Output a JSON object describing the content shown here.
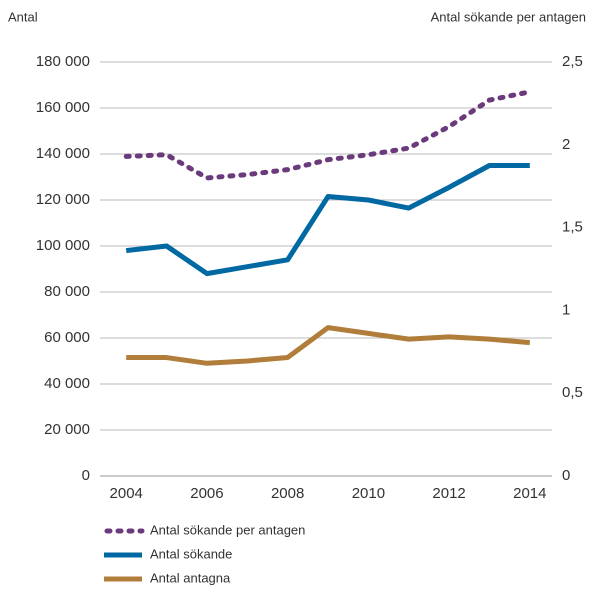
{
  "chart_data": {
    "type": "line",
    "ylabel": "Antal",
    "y2label": "Antal sökande per antagen",
    "x": [
      2004,
      2005,
      2006,
      2007,
      2008,
      2009,
      2010,
      2011,
      2012,
      2013,
      2014
    ],
    "xlim": [
      2003.35,
      2014.55
    ],
    "xticks": [
      2004,
      2006,
      2008,
      2010,
      2012,
      2014
    ],
    "ylim": [
      0,
      180000
    ],
    "yticks": [
      0,
      {
        "value": 20000,
        "label": "20 000"
      },
      {
        "value": 40000,
        "label": "40 000"
      },
      {
        "value": 60000,
        "label": "60 000"
      },
      {
        "value": 80000,
        "label": "80 000"
      },
      {
        "value": 100000,
        "label": "100 000"
      },
      {
        "value": 120000,
        "label": "120 000"
      },
      {
        "value": 140000,
        "label": "140 000"
      },
      {
        "value": 160000,
        "label": "160 000"
      },
      {
        "value": 180000,
        "label": "180 000"
      }
    ],
    "y2lim": [
      0,
      2.5
    ],
    "y2ticks": [
      0,
      {
        "value": 0.5,
        "label": "0,5"
      },
      1,
      {
        "value": 1.5,
        "label": "1,5"
      },
      2,
      {
        "value": 2.5,
        "label": "2,5"
      }
    ],
    "grid": true,
    "series": [
      {
        "name": "Antal sökande per antagen",
        "color": "#6b3a7d",
        "axis": "y2",
        "dashed": true,
        "values": [
          1.93,
          1.94,
          1.8,
          1.82,
          1.85,
          1.91,
          1.94,
          1.98,
          2.11,
          2.27,
          2.32
        ]
      },
      {
        "name": "Antal sökande",
        "color": "#0068a3",
        "values": [
          98000,
          100000,
          88000,
          91000,
          94000,
          121500,
          120000,
          116500,
          125500,
          135000,
          135000
        ]
      },
      {
        "name": "Antal antagna",
        "color": "#b07d3a",
        "values": [
          51500,
          51500,
          49000,
          50000,
          51500,
          64500,
          62000,
          59500,
          60500,
          59500,
          58000
        ]
      }
    ]
  }
}
